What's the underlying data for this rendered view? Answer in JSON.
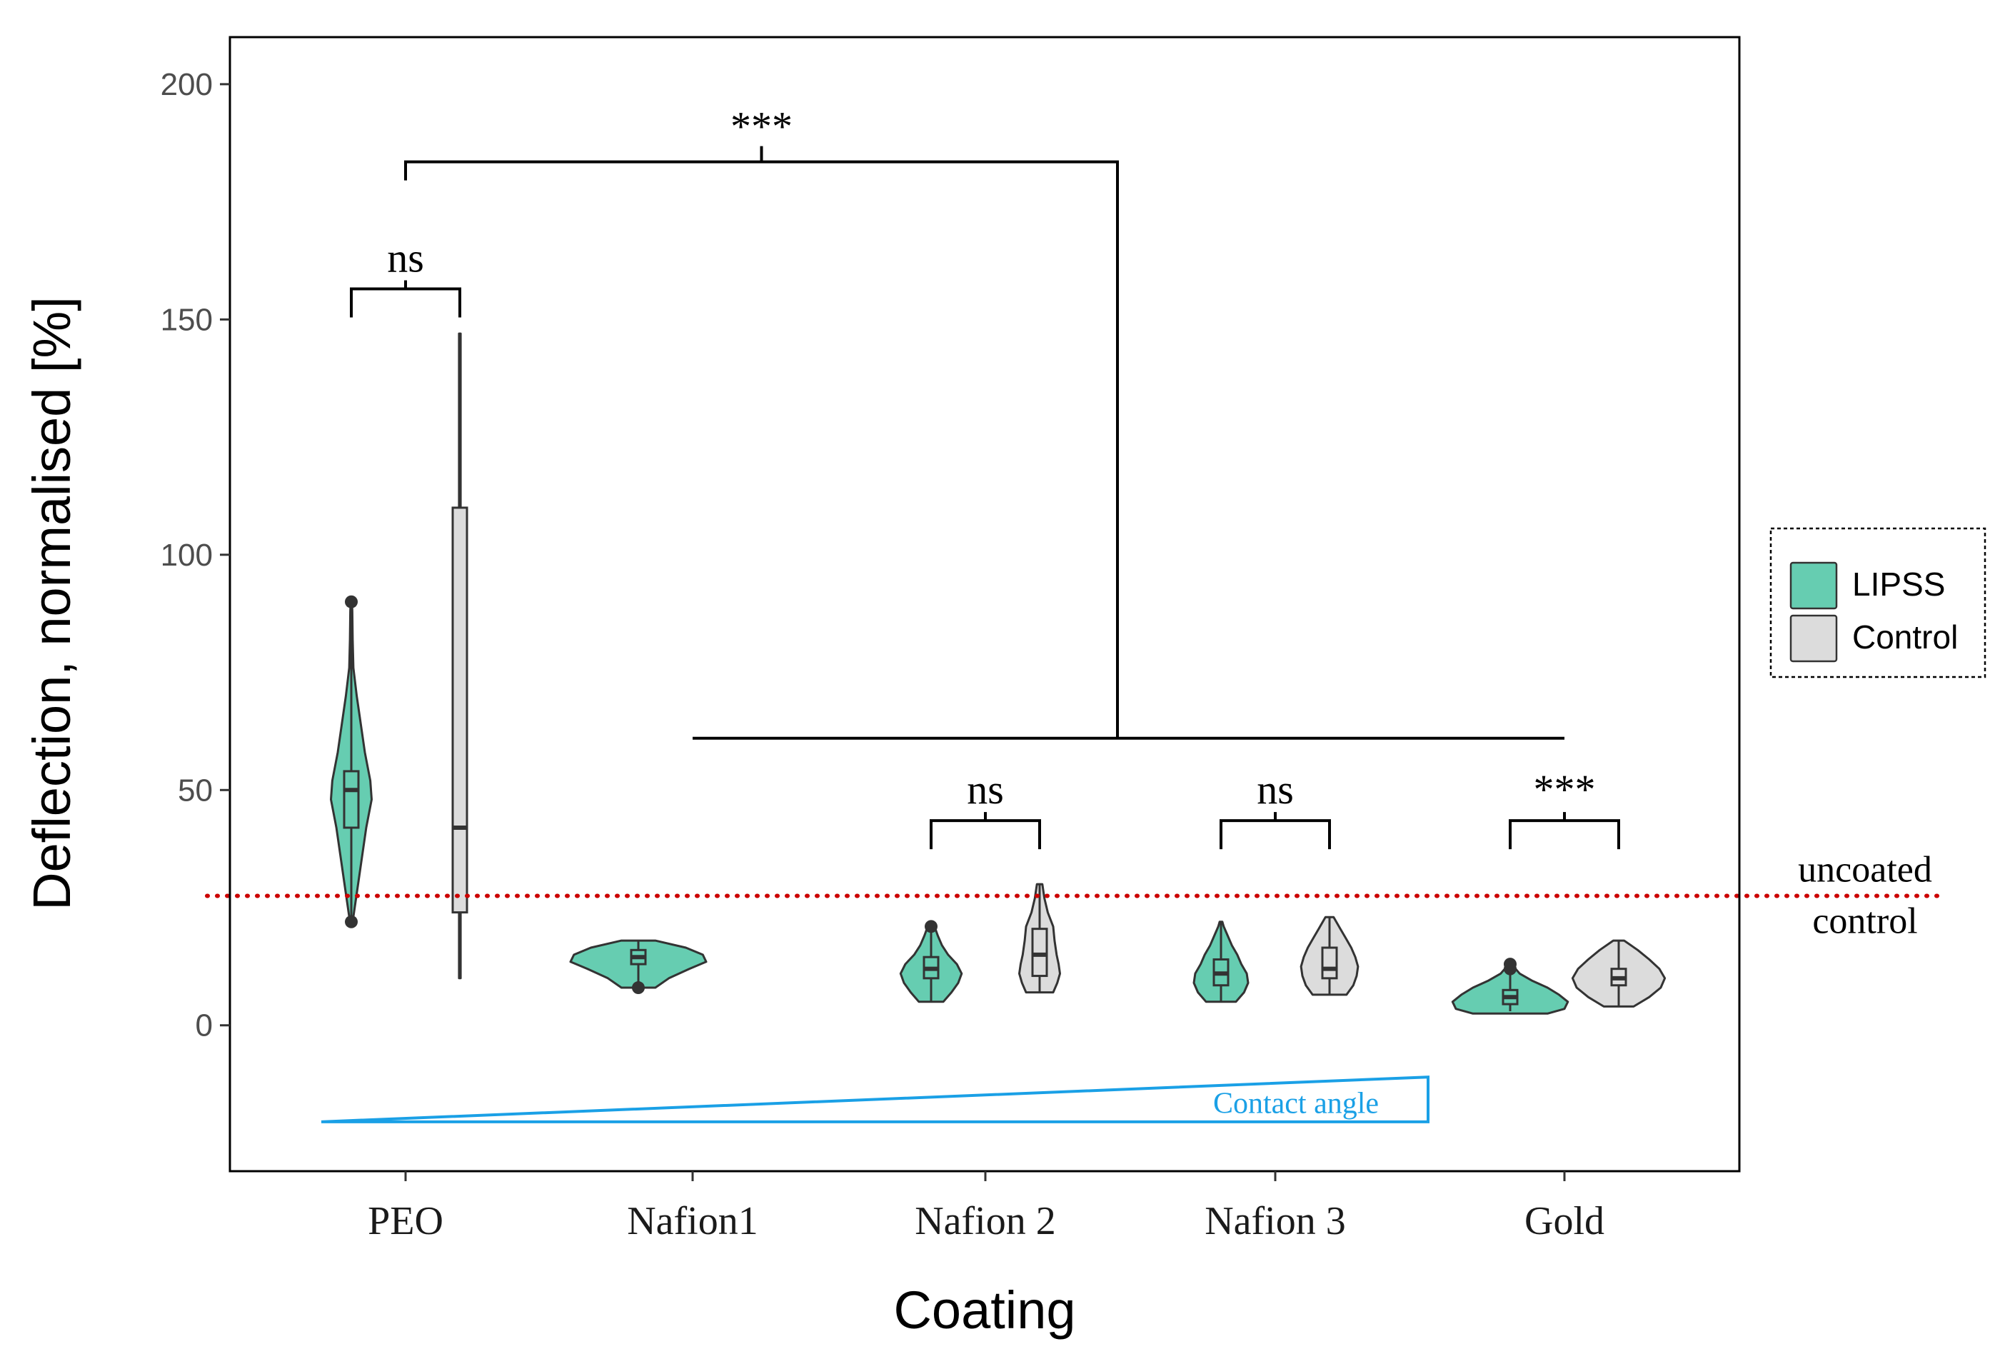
{
  "chart_data": {
    "type": "violin",
    "xlabel": "Coating",
    "ylabel": "Deflection, normalised [%]",
    "ylim": [
      -31,
      210
    ],
    "yticks": [
      0,
      50,
      100,
      150,
      200
    ],
    "categories": [
      "PEO",
      "Nafion1",
      "Nafion 2",
      "Nafion 3",
      "Gold"
    ],
    "legend": {
      "position": "right",
      "entries": [
        {
          "name": "LIPSS",
          "color": "#66CDB1"
        },
        {
          "name": "Control",
          "color": "#DCDCDC"
        }
      ]
    },
    "series": [
      {
        "name": "LIPSS",
        "color": "#66CDB1",
        "groups": [
          {
            "category": "PEO",
            "min": 22,
            "q1": 42,
            "median": 50,
            "q3": 54,
            "max": 90,
            "outliers": [
              22,
              90
            ],
            "density": [
              [
                22,
                0.02
              ],
              [
                26,
                0.06
              ],
              [
                30,
                0.1
              ],
              [
                36,
                0.16
              ],
              [
                42,
                0.22
              ],
              [
                48,
                0.3
              ],
              [
                52,
                0.28
              ],
              [
                58,
                0.2
              ],
              [
                64,
                0.14
              ],
              [
                70,
                0.08
              ],
              [
                76,
                0.03
              ],
              [
                82,
                0.02
              ],
              [
                88,
                0.015
              ],
              [
                90,
                0.01
              ]
            ]
          },
          {
            "category": "Nafion1",
            "min": 8,
            "q1": 13,
            "median": 14.5,
            "q3": 16,
            "max": 18,
            "outliers": [
              8
            ],
            "density": [
              [
                8,
                0.25
              ],
              [
                10,
                0.45
              ],
              [
                12,
                0.75
              ],
              [
                13.5,
                1.0
              ],
              [
                15,
                0.95
              ],
              [
                16.5,
                0.7
              ],
              [
                18,
                0.25
              ]
            ]
          },
          {
            "category": "Nafion 2",
            "min": 5,
            "q1": 10,
            "median": 12,
            "q3": 14.5,
            "max": 21,
            "outliers": [
              21
            ],
            "density": [
              [
                5,
                0.18
              ],
              [
                7,
                0.3
              ],
              [
                9,
                0.4
              ],
              [
                11,
                0.45
              ],
              [
                13,
                0.38
              ],
              [
                15,
                0.25
              ],
              [
                17,
                0.16
              ],
              [
                19,
                0.1
              ],
              [
                21,
                0.05
              ]
            ]
          },
          {
            "category": "Nafion 3",
            "min": 5,
            "q1": 8.5,
            "median": 11,
            "q3": 14,
            "max": 22,
            "outliers": [],
            "density": [
              [
                5,
                0.22
              ],
              [
                7,
                0.34
              ],
              [
                9,
                0.4
              ],
              [
                11,
                0.38
              ],
              [
                13,
                0.3
              ],
              [
                15,
                0.24
              ],
              [
                17,
                0.16
              ],
              [
                19,
                0.1
              ],
              [
                21,
                0.04
              ],
              [
                22,
                0.02
              ]
            ]
          },
          {
            "category": "Gold",
            "min": 3,
            "q1": 4.5,
            "median": 6,
            "q3": 7.5,
            "max": 13,
            "outliers": [
              12,
              13
            ],
            "density": [
              [
                2.5,
                0.55
              ],
              [
                3.5,
                0.8
              ],
              [
                5,
                0.85
              ],
              [
                6.5,
                0.72
              ],
              [
                8,
                0.55
              ],
              [
                9.5,
                0.32
              ],
              [
                11,
                0.14
              ],
              [
                12.5,
                0.05
              ],
              [
                13,
                0.02
              ]
            ]
          }
        ]
      },
      {
        "name": "Control",
        "color": "#DCDCDC",
        "groups": [
          {
            "category": "PEO",
            "min": 10,
            "q1": 24,
            "median": 42,
            "q3": 110,
            "max": 147,
            "outliers": [],
            "density": [
              [
                10,
                0.012
              ],
              [
                147,
                0.012
              ]
            ]
          },
          {
            "category": "Nafion 2",
            "min": 7,
            "q1": 10.5,
            "median": 15,
            "q3": 20.5,
            "max": 30,
            "outliers": [],
            "density": [
              [
                7,
                0.2
              ],
              [
                9,
                0.26
              ],
              [
                11,
                0.3
              ],
              [
                13,
                0.28
              ],
              [
                15,
                0.25
              ],
              [
                18,
                0.22
              ],
              [
                21,
                0.2
              ],
              [
                24,
                0.12
              ],
              [
                27,
                0.07
              ],
              [
                30,
                0.04
              ]
            ]
          },
          {
            "category": "Nafion 3",
            "min": 6.5,
            "q1": 10,
            "median": 12,
            "q3": 16.5,
            "max": 23,
            "outliers": [],
            "density": [
              [
                6.5,
                0.25
              ],
              [
                8.5,
                0.35
              ],
              [
                10.5,
                0.4
              ],
              [
                12.5,
                0.42
              ],
              [
                14.5,
                0.38
              ],
              [
                16.5,
                0.32
              ],
              [
                18.5,
                0.24
              ],
              [
                20.5,
                0.16
              ],
              [
                23,
                0.06
              ]
            ]
          },
          {
            "category": "Gold",
            "min": 4,
            "q1": 8.5,
            "median": 10,
            "q3": 12,
            "max": 18,
            "outliers": [],
            "density": [
              [
                4,
                0.22
              ],
              [
                6,
                0.45
              ],
              [
                8,
                0.62
              ],
              [
                10,
                0.68
              ],
              [
                12,
                0.6
              ],
              [
                14,
                0.45
              ],
              [
                16,
                0.28
              ],
              [
                18,
                0.08
              ]
            ]
          }
        ]
      }
    ],
    "reference_line": {
      "value": 27.5,
      "label_line1": "uncoated",
      "label_line2": "control",
      "color": "#CC0000"
    },
    "significance": [
      {
        "label": "ns",
        "between": [
          "PEO/LIPSS",
          "PEO/Control"
        ]
      },
      {
        "label": "***",
        "between": [
          "PEO",
          "Nafion1–Gold"
        ]
      },
      {
        "label": "ns",
        "between": [
          "Nafion 2/LIPSS",
          "Nafion 2/Control"
        ]
      },
      {
        "label": "ns",
        "between": [
          "Nafion 3/LIPSS",
          "Nafion 3/Control"
        ]
      },
      {
        "label": "***",
        "between": [
          "Gold/LIPSS",
          "Gold/Control"
        ]
      }
    ],
    "annotations": [
      {
        "text": "Contact angle",
        "color": "#1AA0E6"
      }
    ]
  }
}
